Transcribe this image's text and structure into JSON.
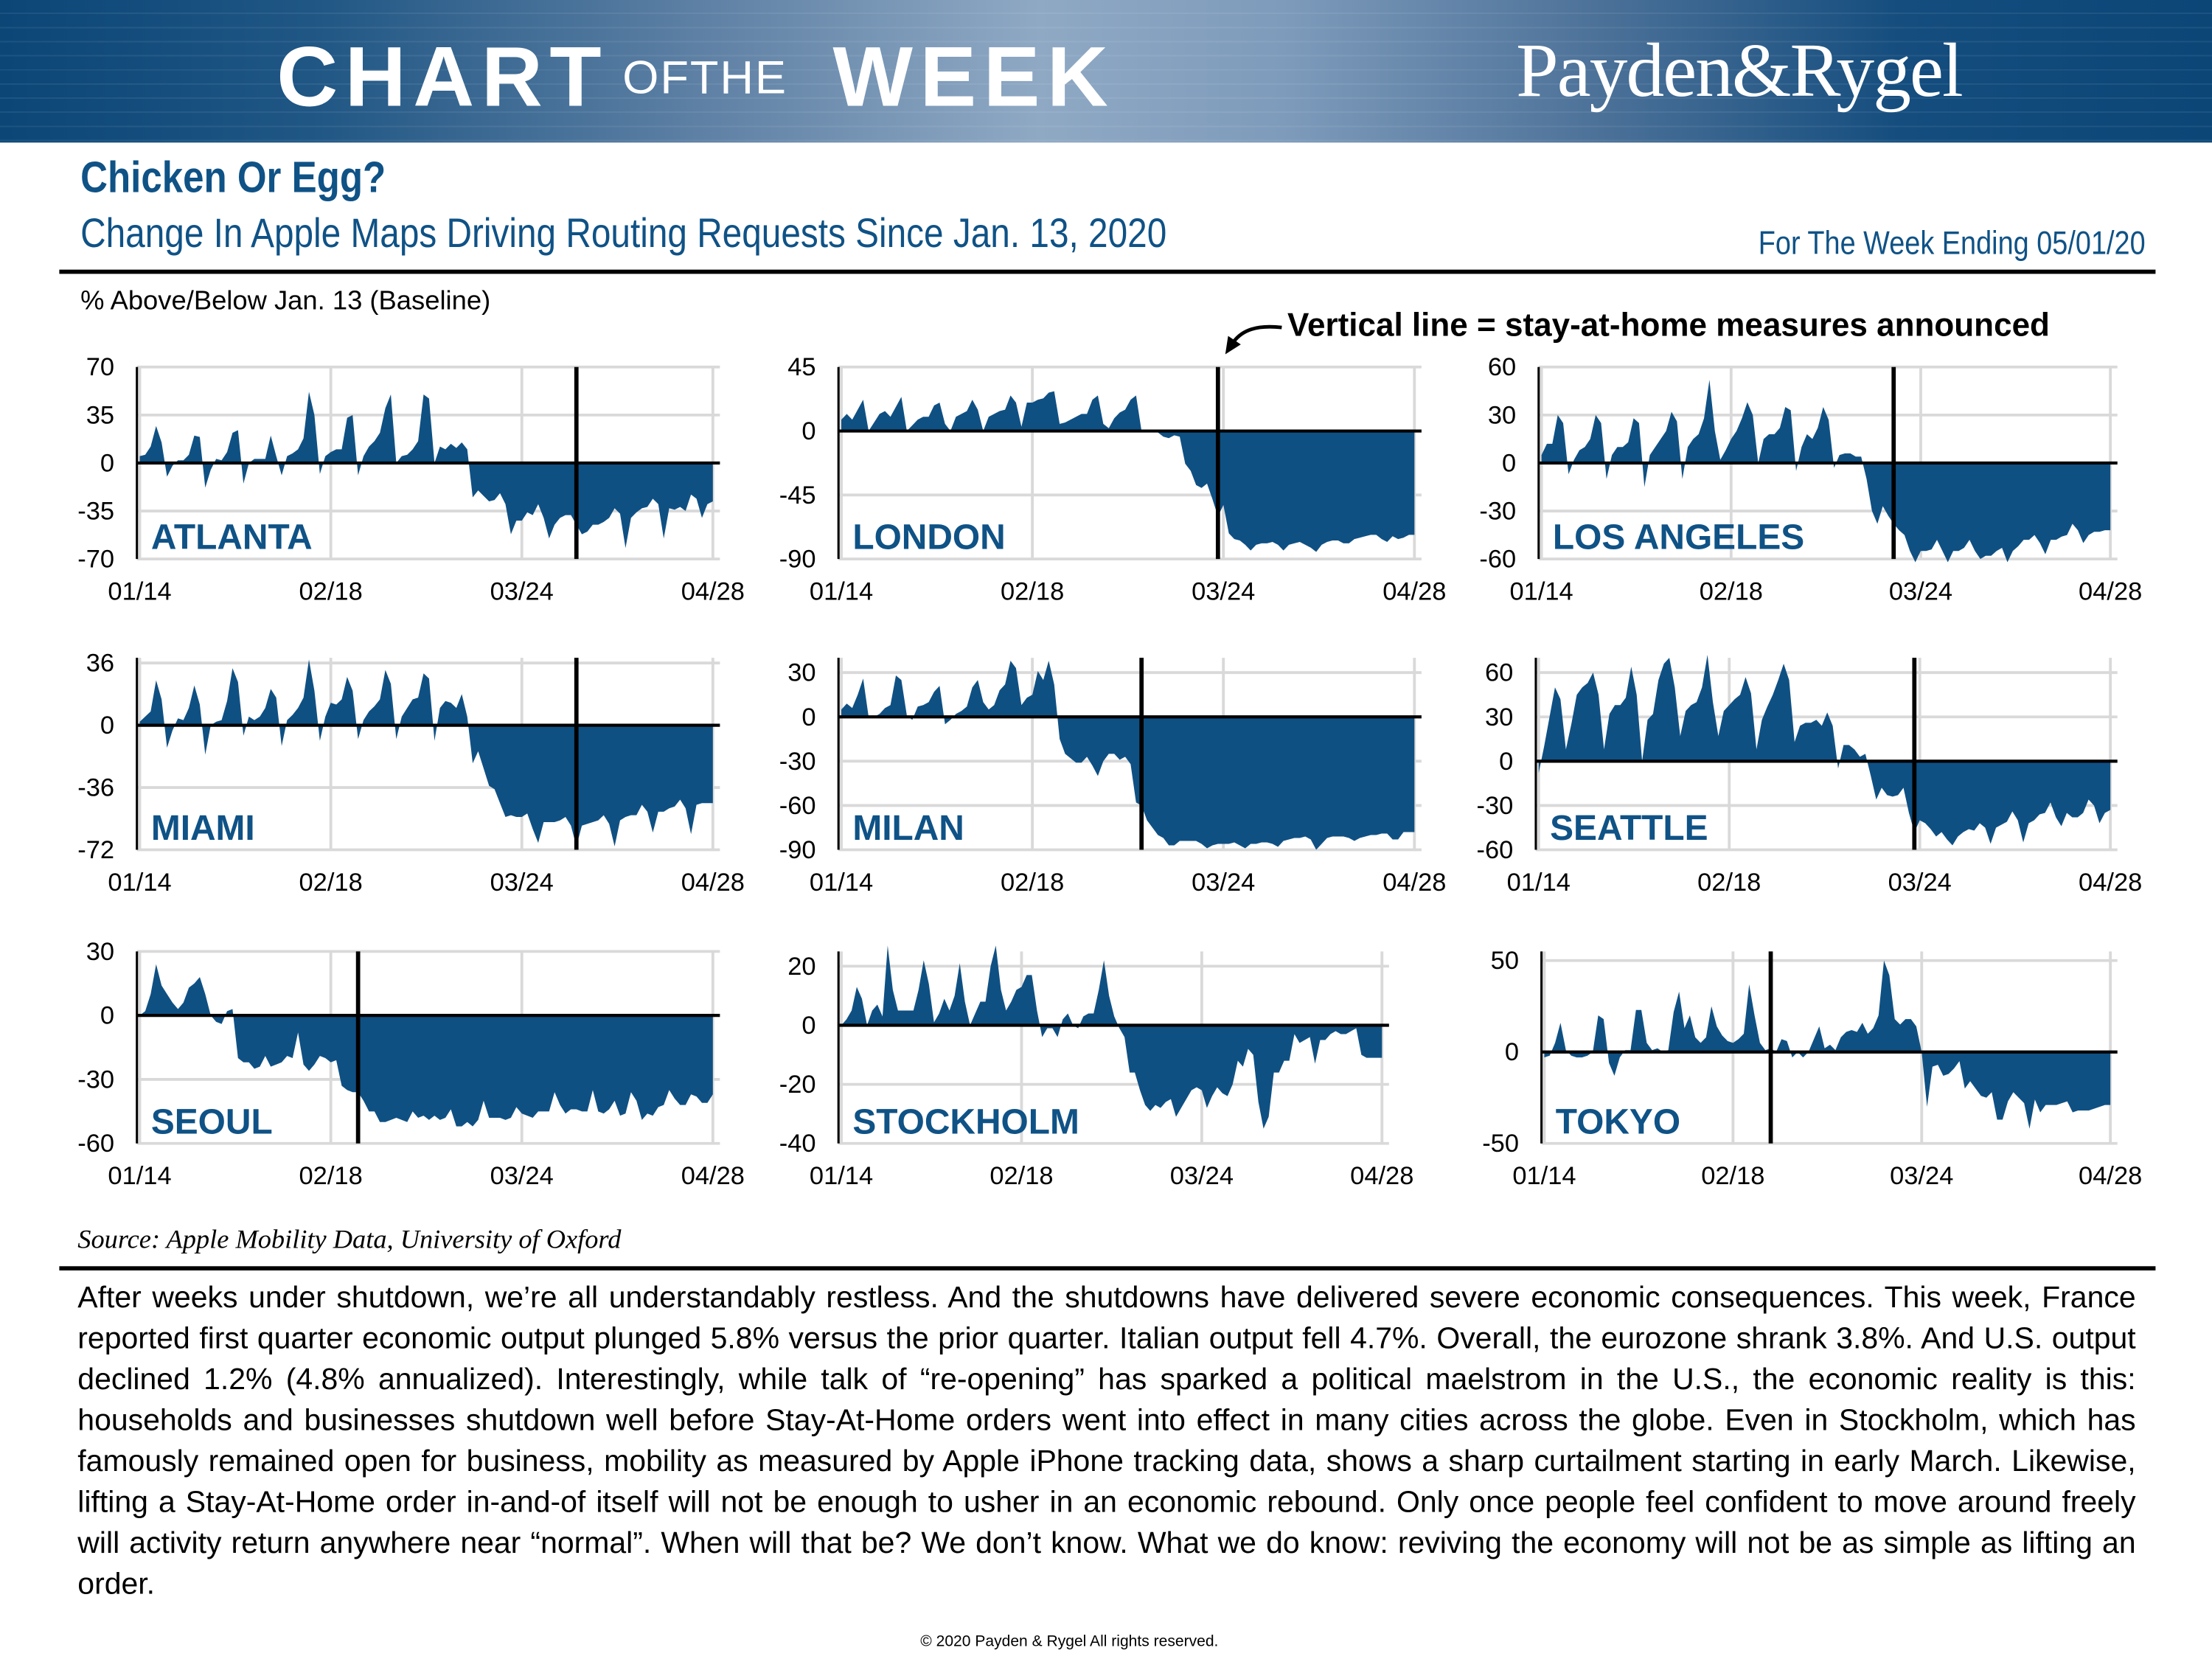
{
  "banner": {
    "logo_chart": "CHART",
    "logo_ofthe": "OFTHE",
    "logo_week": "WEEK",
    "brand": "Payden&Rygel",
    "colors": {
      "banner_dark": "#0b4677",
      "banner_light": "#8fa9c4"
    }
  },
  "header": {
    "title": "Chicken Or Egg?",
    "subtitle": "Change In Apple Maps Driving Routing Requests Since Jan. 13, 2020",
    "week_ending": "For The Week Ending 05/01/20"
  },
  "y_axis_note": "% Above/Below Jan. 13 (Baseline)",
  "annotation": "Vertical line = stay-at-home measures announced",
  "colors": {
    "area_fill": "#0f5083",
    "title_blue": "#0f5286",
    "grid": "#d9d9d9"
  },
  "chart_data": [
    {
      "type": "area",
      "title": "ATLANTA",
      "x_start": "01/14",
      "x_ticks": [
        "01/14",
        "02/18",
        "03/24",
        "04/28"
      ],
      "ylim": [
        -70,
        70
      ],
      "y_ticks": [
        70,
        35,
        0,
        -35,
        -70
      ],
      "grid": true,
      "event_line": "04/03",
      "values": [
        5,
        6,
        12,
        27,
        15,
        -10,
        -2,
        2,
        2,
        6,
        20,
        19,
        -18,
        -5,
        3,
        2,
        8,
        22,
        24,
        -15,
        0,
        3,
        3,
        3,
        20,
        5,
        -9,
        5,
        7,
        10,
        18,
        52,
        35,
        -8,
        5,
        8,
        10,
        10,
        33,
        35,
        -9,
        5,
        12,
        16,
        22,
        40,
        50,
        0,
        5,
        6,
        10,
        16,
        50,
        47,
        0,
        12,
        10,
        14,
        11,
        15,
        10,
        -25,
        -20,
        -24,
        -28,
        -27,
        -22,
        -30,
        -52,
        -42,
        -42,
        -36,
        -38,
        -30,
        -40,
        -55,
        -45,
        -40,
        -38,
        -38,
        -45,
        -52,
        -50,
        -45,
        -45,
        -43,
        -40,
        -33,
        -37,
        -62,
        -40,
        -36,
        -33,
        -32,
        -26,
        -30,
        -55,
        -33,
        -34,
        -32,
        -35,
        -23,
        -26,
        -40,
        -30,
        -28
      ]
    },
    {
      "type": "area",
      "title": "LONDON",
      "x_start": "01/14",
      "x_ticks": [
        "01/14",
        "02/18",
        "03/24",
        "04/28"
      ],
      "ylim": [
        -90,
        45
      ],
      "y_ticks": [
        45,
        0,
        -45,
        -90
      ],
      "grid": true,
      "event_line": "03/23",
      "values": [
        8,
        12,
        8,
        15,
        22,
        0,
        6,
        12,
        14,
        10,
        17,
        24,
        0,
        4,
        8,
        10,
        10,
        18,
        20,
        5,
        0,
        10,
        12,
        14,
        22,
        15,
        0,
        10,
        12,
        14,
        15,
        25,
        20,
        3,
        20,
        20,
        22,
        23,
        27,
        28,
        5,
        6,
        8,
        10,
        12,
        12,
        22,
        25,
        5,
        2,
        9,
        13,
        15,
        22,
        25,
        0,
        0,
        1,
        -1,
        -4,
        -5,
        -3,
        -4,
        -23,
        -28,
        -38,
        -40,
        -37,
        -48,
        -60,
        -52,
        -72,
        -76,
        -77,
        -80,
        -84,
        -80,
        -79,
        -79,
        -78,
        -80,
        -84,
        -80,
        -79,
        -78,
        -80,
        -82,
        -85,
        -80,
        -78,
        -77,
        -77,
        -79,
        -79,
        -76,
        -75,
        -74,
        -73,
        -73,
        -76,
        -78,
        -74,
        -76,
        -75,
        -73,
        -73
      ]
    },
    {
      "type": "area",
      "title": "LOS ANGELES",
      "x_start": "01/14",
      "x_ticks": [
        "01/14",
        "02/18",
        "03/24",
        "04/28"
      ],
      "ylim": [
        -60,
        60
      ],
      "y_ticks": [
        60,
        30,
        0,
        -30,
        -60
      ],
      "grid": true,
      "event_line": "03/19",
      "values": [
        5,
        12,
        12,
        30,
        25,
        -7,
        2,
        8,
        10,
        15,
        30,
        25,
        -10,
        5,
        10,
        10,
        13,
        28,
        25,
        -15,
        5,
        10,
        15,
        20,
        32,
        26,
        -10,
        10,
        15,
        18,
        28,
        52,
        20,
        2,
        8,
        15,
        20,
        28,
        38,
        30,
        0,
        15,
        18,
        18,
        22,
        35,
        33,
        -5,
        10,
        18,
        15,
        22,
        35,
        27,
        -3,
        5,
        6,
        6,
        4,
        4,
        -10,
        -30,
        -38,
        -27,
        -33,
        -38,
        -42,
        -45,
        -55,
        -62,
        -55,
        -55,
        -54,
        -48,
        -55,
        -62,
        -55,
        -55,
        -53,
        -48,
        -55,
        -60,
        -58,
        -58,
        -55,
        -53,
        -62,
        -55,
        -52,
        -48,
        -48,
        -45,
        -50,
        -57,
        -48,
        -48,
        -46,
        -45,
        -38,
        -42,
        -50,
        -45,
        -43,
        -43,
        -42,
        -42
      ]
    },
    {
      "type": "area",
      "title": "MIAMI",
      "x_start": "01/14",
      "x_ticks": [
        "01/14",
        "02/18",
        "03/24",
        "04/28"
      ],
      "ylim": [
        -72,
        39
      ],
      "y_ticks": [
        36,
        0,
        -36,
        -72
      ],
      "grid": true,
      "event_line": "04/03",
      "values": [
        2,
        5,
        8,
        26,
        15,
        -13,
        -3,
        4,
        3,
        10,
        23,
        12,
        -17,
        0,
        2,
        3,
        14,
        33,
        25,
        -6,
        5,
        3,
        5,
        10,
        21,
        16,
        -12,
        3,
        6,
        10,
        16,
        38,
        20,
        -9,
        5,
        13,
        12,
        15,
        28,
        20,
        -8,
        3,
        8,
        11,
        15,
        32,
        24,
        -8,
        5,
        10,
        15,
        16,
        30,
        27,
        -9,
        10,
        14,
        13,
        10,
        18,
        5,
        -22,
        -15,
        -25,
        -35,
        -37,
        -45,
        -53,
        -52,
        -53,
        -53,
        -51,
        -60,
        -68,
        -56,
        -56,
        -56,
        -55,
        -53,
        -58,
        -70,
        -58,
        -57,
        -56,
        -55,
        -52,
        -57,
        -70,
        -55,
        -53,
        -52,
        -52,
        -46,
        -50,
        -62,
        -50,
        -50,
        -48,
        -47,
        -43,
        -48,
        -63,
        -46,
        -45,
        -45,
        -45
      ]
    },
    {
      "type": "area",
      "title": "MILAN",
      "x_start": "01/14",
      "x_ticks": [
        "01/14",
        "02/18",
        "03/24",
        "04/28"
      ],
      "ylim": [
        -90,
        40
      ],
      "y_ticks": [
        30,
        0,
        -30,
        -60,
        -90
      ],
      "grid": true,
      "event_line": "03/09",
      "values": [
        5,
        9,
        6,
        15,
        26,
        0,
        0,
        2,
        6,
        8,
        28,
        25,
        1,
        -2,
        7,
        8,
        10,
        17,
        21,
        -5,
        -2,
        2,
        4,
        7,
        20,
        25,
        10,
        5,
        8,
        18,
        22,
        38,
        33,
        8,
        13,
        15,
        31,
        25,
        38,
        22,
        -15,
        -25,
        -28,
        -31,
        -31,
        -27,
        -33,
        -40,
        -30,
        -25,
        -25,
        -29,
        -27,
        -32,
        -58,
        -60,
        -70,
        -75,
        -80,
        -82,
        -87,
        -87,
        -84,
        -84,
        -84,
        -84,
        -86,
        -89,
        -87,
        -86,
        -86,
        -86,
        -85,
        -87,
        -89,
        -86,
        -86,
        -85,
        -85,
        -86,
        -88,
        -84,
        -83,
        -82,
        -82,
        -81,
        -83,
        -90,
        -86,
        -82,
        -81,
        -81,
        -81,
        -82,
        -84,
        -82,
        -81,
        -80,
        -80,
        -79,
        -79,
        -83,
        -83,
        -78,
        -78,
        -78
      ]
    },
    {
      "type": "area",
      "title": "SEATTLE",
      "x_start": "01/14",
      "x_ticks": [
        "01/14",
        "02/18",
        "03/24",
        "04/28"
      ],
      "ylim": [
        -60,
        70
      ],
      "y_ticks": [
        60,
        30,
        0,
        -30,
        -60
      ],
      "grid": true,
      "event_line": "03/23",
      "values": [
        -8,
        10,
        30,
        50,
        42,
        8,
        25,
        45,
        50,
        53,
        60,
        45,
        8,
        32,
        38,
        38,
        43,
        64,
        45,
        0,
        28,
        32,
        55,
        66,
        70,
        50,
        17,
        34,
        38,
        40,
        50,
        72,
        40,
        17,
        34,
        38,
        42,
        45,
        57,
        46,
        8,
        28,
        37,
        45,
        55,
        66,
        55,
        13,
        24,
        26,
        26,
        28,
        24,
        33,
        24,
        -5,
        11,
        11,
        8,
        3,
        5,
        -10,
        -26,
        -18,
        -23,
        -24,
        -23,
        -18,
        -35,
        -48,
        -40,
        -42,
        -46,
        -51,
        -48,
        -53,
        -57,
        -51,
        -48,
        -46,
        -47,
        -42,
        -45,
        -56,
        -45,
        -43,
        -41,
        -34,
        -40,
        -55,
        -42,
        -40,
        -36,
        -35,
        -28,
        -38,
        -44,
        -35,
        -38,
        -38,
        -35,
        -26,
        -30,
        -42,
        -35,
        -33
      ]
    },
    {
      "type": "area",
      "title": "SEOUL",
      "x_start": "01/14",
      "x_ticks": [
        "01/14",
        "02/18",
        "03/24",
        "04/28"
      ],
      "ylim": [
        -60,
        30
      ],
      "y_ticks": [
        30,
        0,
        -30,
        -60
      ],
      "grid": true,
      "event_line": "02/23",
      "values": [
        0,
        2,
        10,
        24,
        14,
        10,
        6,
        3,
        6,
        13,
        15,
        18,
        10,
        0,
        -3,
        -4,
        2,
        3,
        -20,
        -22,
        -22,
        -25,
        -24,
        -19,
        -24,
        -23,
        -22,
        -19,
        -20,
        -8,
        -23,
        -26,
        -23,
        -19,
        -20,
        -22,
        -21,
        -33,
        -35,
        -36,
        -36,
        -40,
        -45,
        -45,
        -50,
        -50,
        -49,
        -48,
        -49,
        -50,
        -45,
        -48,
        -47,
        -49,
        -47,
        -49,
        -48,
        -44,
        -52,
        -52,
        -50,
        -52,
        -49,
        -40,
        -48,
        -48,
        -48,
        -49,
        -48,
        -43,
        -46,
        -47,
        -48,
        -45,
        -45,
        -45,
        -36,
        -42,
        -46,
        -44,
        -44,
        -45,
        -45,
        -35,
        -45,
        -46,
        -44,
        -40,
        -47,
        -46,
        -36,
        -40,
        -49,
        -46,
        -47,
        -43,
        -42,
        -35,
        -39,
        -42,
        -42,
        -37,
        -38,
        -41,
        -41,
        -37
      ]
    },
    {
      "type": "area",
      "title": "STOCKHOLM",
      "x_start": "01/14",
      "x_ticks": [
        "01/14",
        "02/18",
        "03/24",
        "04/28"
      ],
      "ylim": [
        -40,
        25
      ],
      "y_ticks": [
        20,
        0,
        -20,
        -40
      ],
      "grid": true,
      "event_line": null,
      "values": [
        0,
        2,
        5,
        13,
        9,
        0,
        5,
        7,
        3,
        27,
        12,
        5,
        5,
        5,
        5,
        12,
        22,
        14,
        1,
        4,
        9,
        5,
        10,
        21,
        8,
        0,
        4,
        8,
        8,
        20,
        27,
        12,
        5,
        8,
        12,
        13,
        17,
        17,
        5,
        -4,
        -1,
        -1,
        -4,
        2,
        4,
        0,
        -1,
        3,
        4,
        4,
        12,
        22,
        10,
        3,
        -1,
        -4,
        -16,
        -16,
        -22,
        -27,
        -29,
        -27,
        -28,
        -26,
        -25,
        -31,
        -28,
        -25,
        -22,
        -21,
        -22,
        -28,
        -24,
        -21,
        -23,
        -24,
        -20,
        -12,
        -14,
        -8,
        -10,
        -26,
        -35,
        -31,
        -16,
        -16,
        -12,
        -12,
        -3,
        -6,
        -5,
        -4,
        -13,
        -5,
        -5,
        -3,
        -2,
        -3,
        -3,
        -2,
        -1,
        -10,
        -11,
        -11,
        -11,
        -11
      ]
    },
    {
      "type": "area",
      "title": "TOKYO",
      "x_start": "01/14",
      "x_ticks": [
        "01/14",
        "02/18",
        "03/24",
        "04/28"
      ],
      "ylim": [
        -50,
        55
      ],
      "y_ticks": [
        50,
        0,
        -50
      ],
      "grid": true,
      "event_line": "02/25",
      "values": [
        -3,
        -2,
        5,
        16,
        1,
        -2,
        -3,
        -3,
        -2,
        0,
        20,
        18,
        -6,
        -13,
        -3,
        1,
        1,
        23,
        23,
        5,
        1,
        2,
        0,
        1,
        22,
        33,
        13,
        20,
        8,
        5,
        8,
        25,
        14,
        9,
        6,
        5,
        7,
        10,
        37,
        20,
        5,
        1,
        2,
        0,
        7,
        6,
        -3,
        0,
        -3,
        0,
        7,
        14,
        2,
        4,
        1,
        8,
        11,
        12,
        11,
        16,
        10,
        13,
        20,
        50,
        42,
        18,
        15,
        18,
        18,
        14,
        0,
        -30,
        -8,
        -7,
        -13,
        -12,
        -9,
        -5,
        -20,
        -16,
        -20,
        -24,
        -25,
        -22,
        -37,
        -37,
        -27,
        -22,
        -25,
        -28,
        -42,
        -26,
        -33,
        -29,
        -29,
        -29,
        -28,
        -27,
        -33,
        -32,
        -32,
        -32,
        -31,
        -30,
        -29,
        -29
      ]
    }
  ],
  "source": "Source: Apple Mobility Data, University of Oxford",
  "commentary": "After weeks under shutdown, we’re all understandably restless. And the shutdowns have delivered severe economic consequences. This week, France reported first quarter economic output plunged 5.8% versus the prior quarter. Italian output fell 4.7%. Overall, the eurozone shrank 3.8%. And U.S. output declined 1.2% (4.8% annualized). Interestingly, while talk of “re-opening” has sparked a political maelstrom in the U.S., the economic reality is this: households and businesses shutdown well before Stay-At-Home orders went into effect in many cities across the globe. Even in Stockholm, which has famously remained open for business, mobility as measured by Apple iPhone tracking data, shows a sharp curtailment starting in early March. Likewise, lifting a Stay-At-Home order in-and-of itself will not be enough to usher in an economic rebound. Only once people feel confident to move around freely will activity return anywhere near “normal”. When will that be? We don’t know. What we do know: reviving the economy will not be as simple as lifting an order.",
  "copyright": "© 2020 Payden  & Rygel All rights reserved."
}
